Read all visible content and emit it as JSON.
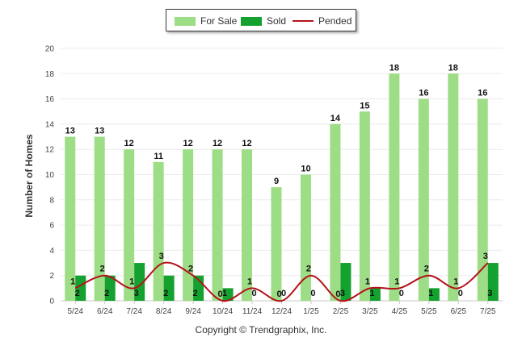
{
  "chart_data": {
    "type": "bar",
    "categories": [
      "5/24",
      "6/24",
      "7/24",
      "8/24",
      "9/24",
      "10/24",
      "11/24",
      "12/24",
      "1/25",
      "2/25",
      "3/25",
      "4/25",
      "5/25",
      "6/25",
      "7/25"
    ],
    "series": [
      {
        "name": "For Sale",
        "type": "bar",
        "color": "#9ddd85",
        "values": [
          13,
          13,
          12,
          11,
          12,
          12,
          12,
          9,
          10,
          14,
          15,
          18,
          16,
          18,
          16
        ]
      },
      {
        "name": "Sold",
        "type": "bar",
        "color": "#14a12f",
        "values": [
          2,
          2,
          3,
          2,
          2,
          1,
          0,
          0,
          0,
          3,
          1,
          0,
          1,
          0,
          3
        ]
      },
      {
        "name": "Pended",
        "type": "line",
        "color": "#b5121b",
        "values": [
          1,
          2,
          1,
          3,
          2,
          0,
          1,
          0,
          2,
          0,
          1,
          1,
          2,
          1,
          3
        ]
      }
    ],
    "ylabel": "Number of Homes",
    "xlabel": "",
    "ylim": [
      0,
      20
    ],
    "yticks": [
      0,
      2,
      4,
      6,
      8,
      10,
      12,
      14,
      16,
      18,
      20
    ],
    "grid": true,
    "legend_position": "top-center"
  },
  "footer": {
    "copyright": "Copyright © Trendgraphix, Inc."
  }
}
